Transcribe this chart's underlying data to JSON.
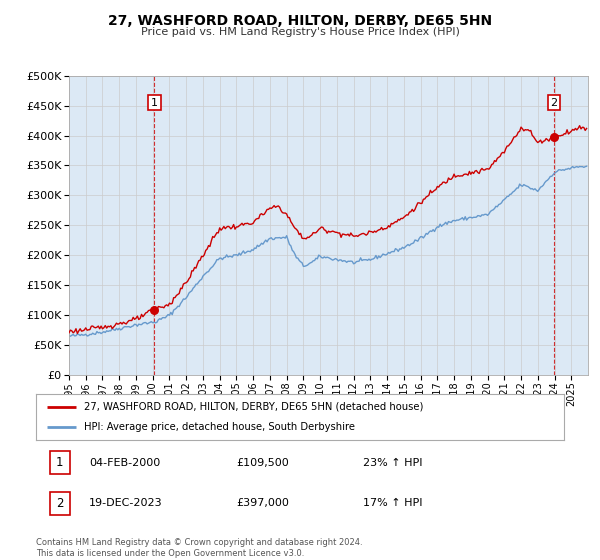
{
  "title": "27, WASHFORD ROAD, HILTON, DERBY, DE65 5HN",
  "subtitle": "Price paid vs. HM Land Registry's House Price Index (HPI)",
  "legend_label_red": "27, WASHFORD ROAD, HILTON, DERBY, DE65 5HN (detached house)",
  "legend_label_blue": "HPI: Average price, detached house, South Derbyshire",
  "sale1_date": "04-FEB-2000",
  "sale1_price": 109500,
  "sale1_hpi": "23%",
  "sale2_date": "19-DEC-2023",
  "sale2_price": 397000,
  "sale2_hpi": "17%",
  "footer1": "Contains HM Land Registry data © Crown copyright and database right 2024.",
  "footer2": "This data is licensed under the Open Government Licence v3.0.",
  "xmin": 1995,
  "xmax": 2026,
  "ymin": 0,
  "ymax": 500000,
  "yticks": [
    0,
    50000,
    100000,
    150000,
    200000,
    250000,
    300000,
    350000,
    400000,
    450000,
    500000
  ],
  "red_color": "#cc0000",
  "blue_color": "#6699cc",
  "bg_color": "#dce9f5",
  "plot_bg": "#ffffff",
  "grid_color": "#cccccc",
  "vline_color": "#cc0000"
}
